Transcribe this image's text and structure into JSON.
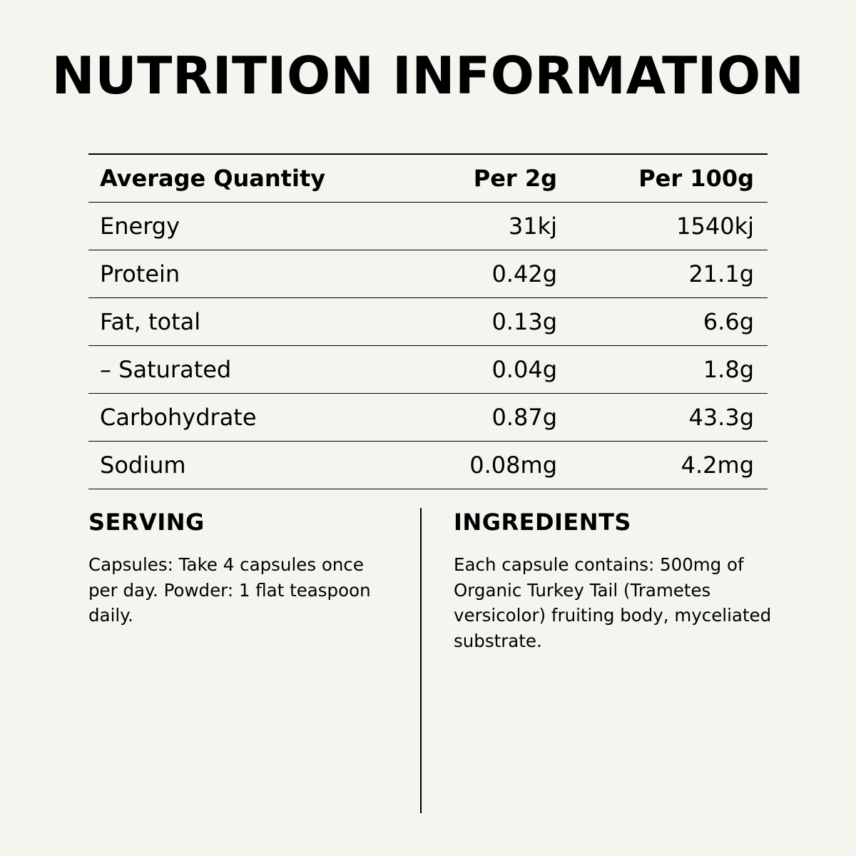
{
  "title": "NUTRITION INFORMATION",
  "table": {
    "headers": [
      "Average Quantity",
      "Per 2g",
      "Per 100g"
    ],
    "rows": [
      {
        "name": "Energy",
        "per_2g": "31kj",
        "per_100g": "1540kj"
      },
      {
        "name": "Protein",
        "per_2g": "0.42g",
        "per_100g": "21.1g"
      },
      {
        "name": "Fat, total",
        "per_2g": "0.13g",
        "per_100g": "6.6g"
      },
      {
        "name": "– Saturated",
        "per_2g": "0.04g",
        "per_100g": "1.8g"
      },
      {
        "name": "Carbohydrate",
        "per_2g": "0.87g",
        "per_100g": "43.3g"
      },
      {
        "name": "Sodium",
        "per_2g": "0.08mg",
        "per_100g": "4.2mg"
      }
    ]
  },
  "serving": {
    "heading": "SERVING",
    "text": "Capsules: Take 4 capsules once per day. Powder: 1 flat teaspoon daily."
  },
  "ingredients": {
    "heading": "INGREDIENTS",
    "text": "Each capsule contains: 500mg of Organic Turkey Tail (Trametes versicolor) fruiting body, myceliated substrate."
  },
  "colors": {
    "background": "#f6f4ef",
    "text": "#000000"
  }
}
